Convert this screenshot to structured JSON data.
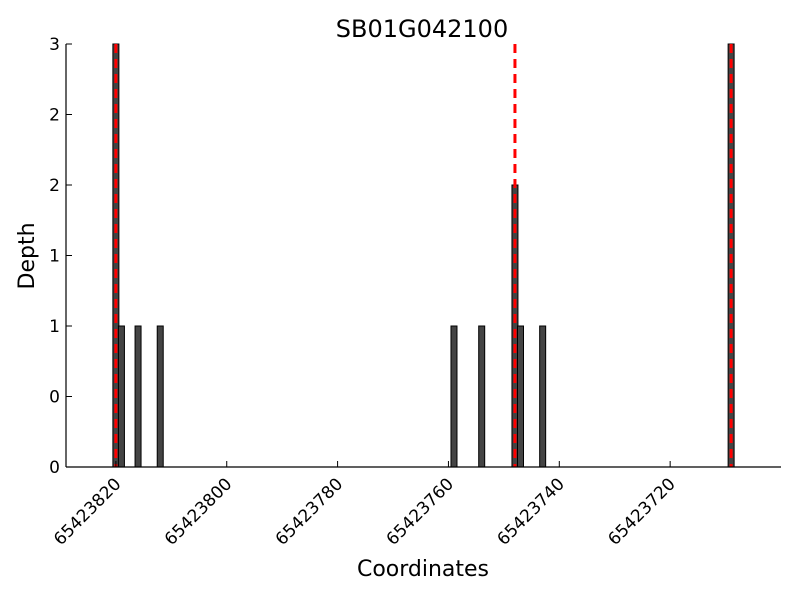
{
  "chart_data": {
    "type": "bar",
    "title": "SB01G042100",
    "xlabel": "Coordinates",
    "ylabel": "Depth",
    "x_reversed": true,
    "xlim": [
      65423829,
      65423700
    ],
    "ylim": [
      0,
      3
    ],
    "x_ticks": [
      65423820,
      65423800,
      65423780,
      65423760,
      65423740,
      65423720
    ],
    "x_tick_labels": [
      "65423820",
      "65423800",
      "65423780",
      "65423760",
      "65423740",
      "65423720"
    ],
    "y_ticks": [
      0,
      0.5,
      1,
      1.5,
      2,
      2.5,
      3
    ],
    "y_tick_labels": [
      "0",
      "0",
      "1",
      "1",
      "2",
      "2",
      "3"
    ],
    "grid": false,
    "legend": "none",
    "bar_color": "#444444",
    "marker_color": "#ff0000",
    "bars": [
      {
        "x": 65423820,
        "y": 3
      },
      {
        "x": 65423819,
        "y": 1
      },
      {
        "x": 65423816,
        "y": 1
      },
      {
        "x": 65423812,
        "y": 1
      },
      {
        "x": 65423759,
        "y": 1
      },
      {
        "x": 65423754,
        "y": 1
      },
      {
        "x": 65423748,
        "y": 2
      },
      {
        "x": 65423747,
        "y": 1
      },
      {
        "x": 65423743,
        "y": 1
      },
      {
        "x": 65423709,
        "y": 3
      }
    ],
    "markers": [
      65423820,
      65423748,
      65423709
    ]
  }
}
